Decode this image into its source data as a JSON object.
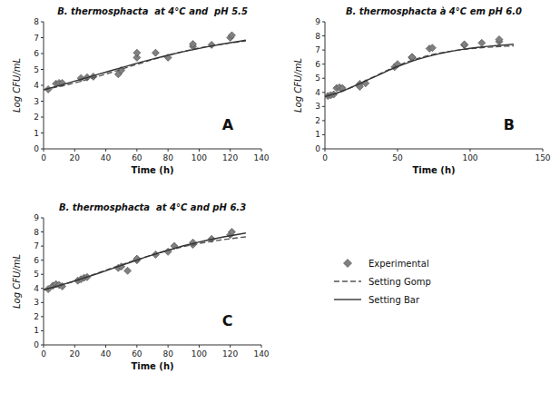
{
  "chart_data": [
    {
      "type": "line",
      "title": "B. thermosphacta  at 4°C and  pH 5.5",
      "xlabel": "Time (h)",
      "ylabel": "Log CFU/mL",
      "xlim": [
        0,
        140
      ],
      "ylim": [
        0,
        8
      ],
      "xticks": [
        0,
        20,
        40,
        60,
        80,
        100,
        120,
        140
      ],
      "yticks": [
        0,
        1,
        2,
        3,
        4,
        5,
        6,
        7,
        8
      ],
      "annotations": [
        "A"
      ],
      "series": [
        {
          "name": "Experimental",
          "type": "scatter",
          "marker": "diamond",
          "color": "#808080",
          "x": [
            3,
            8,
            10,
            12,
            24,
            28,
            32,
            48,
            50,
            60,
            60,
            72,
            80,
            96,
            96,
            108,
            120,
            121
          ],
          "values": [
            3.75,
            4.1,
            4.15,
            4.15,
            4.45,
            4.5,
            4.55,
            4.7,
            4.95,
            5.75,
            6.05,
            6.05,
            5.75,
            6.45,
            6.6,
            6.55,
            7.0,
            7.15
          ]
        },
        {
          "name": "Setting Gomp",
          "type": "line",
          "line_style": "dashed",
          "color": "#555555",
          "x": [
            0,
            5,
            10,
            15,
            20,
            25,
            30,
            35,
            40,
            45,
            50,
            55,
            60,
            65,
            70,
            75,
            80,
            85,
            90,
            95,
            100,
            105,
            110,
            115,
            120,
            125,
            130
          ],
          "values": [
            3.72,
            3.82,
            3.92,
            4.03,
            4.15,
            4.28,
            4.42,
            4.56,
            4.71,
            4.86,
            5.01,
            5.17,
            5.32,
            5.47,
            5.62,
            5.76,
            5.89,
            6.02,
            6.14,
            6.25,
            6.35,
            6.44,
            6.52,
            6.6,
            6.67,
            6.73,
            6.79
          ]
        },
        {
          "name": "Setting Bar",
          "type": "line",
          "line_style": "solid",
          "color": "#333333",
          "x": [
            0,
            5,
            10,
            15,
            20,
            25,
            30,
            35,
            40,
            45,
            50,
            55,
            60,
            65,
            70,
            75,
            80,
            85,
            90,
            95,
            100,
            105,
            110,
            115,
            120,
            125,
            130
          ],
          "values": [
            3.72,
            3.85,
            3.98,
            4.12,
            4.26,
            4.4,
            4.54,
            4.69,
            4.83,
            4.97,
            5.11,
            5.25,
            5.39,
            5.52,
            5.65,
            5.77,
            5.89,
            6.01,
            6.12,
            6.22,
            6.32,
            6.42,
            6.51,
            6.6,
            6.68,
            6.76,
            6.84
          ]
        }
      ]
    },
    {
      "type": "line",
      "title": "B. thermosphacta à 4°C em pH 6.0",
      "xlabel": "Time (h)",
      "ylabel": "Log CFU/mL",
      "xlim": [
        0,
        150
      ],
      "ylim": [
        0,
        9
      ],
      "xticks": [
        0,
        50,
        100,
        150
      ],
      "yticks": [
        0,
        1,
        2,
        3,
        4,
        5,
        6,
        7,
        8,
        9
      ],
      "annotations": [
        "B"
      ],
      "series": [
        {
          "name": "Experimental",
          "type": "scatter",
          "marker": "diamond",
          "color": "#808080",
          "x": [
            2,
            4,
            6,
            8,
            10,
            12,
            24,
            24,
            28,
            48,
            50,
            60,
            60,
            60,
            72,
            74,
            96,
            96,
            108,
            120,
            120
          ],
          "values": [
            3.75,
            3.8,
            3.85,
            4.3,
            4.35,
            4.3,
            4.6,
            4.4,
            4.65,
            5.8,
            6.0,
            6.45,
            6.5,
            6.5,
            7.1,
            7.15,
            7.35,
            7.4,
            7.5,
            7.6,
            7.75
          ]
        },
        {
          "name": "Setting Gomp",
          "type": "line",
          "line_style": "dashed",
          "color": "#555555",
          "x": [
            0,
            5,
            10,
            15,
            20,
            25,
            30,
            35,
            40,
            45,
            50,
            55,
            60,
            65,
            70,
            75,
            80,
            85,
            90,
            95,
            100,
            105,
            110,
            115,
            120,
            125,
            130
          ],
          "values": [
            3.7,
            3.83,
            4.0,
            4.2,
            4.43,
            4.67,
            4.92,
            5.17,
            5.42,
            5.66,
            5.88,
            6.09,
            6.27,
            6.44,
            6.58,
            6.7,
            6.8,
            6.89,
            6.97,
            7.04,
            7.09,
            7.14,
            7.18,
            7.21,
            7.24,
            7.27,
            7.29
          ]
        },
        {
          "name": "Setting Bar",
          "type": "line",
          "line_style": "solid",
          "color": "#333333",
          "x": [
            0,
            5,
            10,
            15,
            20,
            25,
            30,
            35,
            40,
            45,
            50,
            55,
            60,
            65,
            70,
            75,
            80,
            85,
            90,
            95,
            100,
            105,
            110,
            115,
            120,
            125,
            130
          ],
          "values": [
            3.7,
            3.85,
            4.02,
            4.22,
            4.44,
            4.67,
            4.91,
            5.14,
            5.38,
            5.61,
            5.82,
            6.02,
            6.21,
            6.37,
            6.52,
            6.65,
            6.77,
            6.87,
            6.97,
            7.05,
            7.12,
            7.18,
            7.24,
            7.29,
            7.33,
            7.37,
            7.41
          ]
        }
      ]
    },
    {
      "type": "line",
      "title": "B. thermosphacta  at 4°C and pH 6.3",
      "xlabel": "Time (h)",
      "ylabel": "Log CFU/mL",
      "xlim": [
        0,
        140
      ],
      "ylim": [
        0,
        9
      ],
      "xticks": [
        0,
        20,
        40,
        60,
        80,
        100,
        120,
        140
      ],
      "yticks": [
        0,
        1,
        2,
        3,
        4,
        5,
        6,
        7,
        8,
        9
      ],
      "annotations": [
        "C"
      ],
      "series": [
        {
          "name": "Experimental",
          "type": "scatter",
          "marker": "diamond",
          "color": "#808080",
          "x": [
            3,
            6,
            8,
            10,
            12,
            22,
            24,
            26,
            28,
            48,
            50,
            54,
            60,
            60,
            72,
            80,
            84,
            96,
            96,
            108,
            120,
            121
          ],
          "values": [
            3.95,
            4.2,
            4.3,
            4.25,
            4.15,
            4.55,
            4.65,
            4.75,
            4.8,
            5.45,
            5.55,
            5.25,
            6.0,
            6.1,
            6.4,
            6.6,
            7.0,
            7.1,
            7.25,
            7.5,
            7.8,
            8.0
          ]
        },
        {
          "name": "Setting Gomp",
          "type": "line",
          "line_style": "dashed",
          "color": "#555555",
          "x": [
            0,
            5,
            10,
            15,
            20,
            25,
            30,
            35,
            40,
            45,
            50,
            55,
            60,
            65,
            70,
            75,
            80,
            85,
            90,
            95,
            100,
            105,
            110,
            115,
            120,
            125,
            130
          ],
          "values": [
            3.9,
            4.02,
            4.18,
            4.35,
            4.52,
            4.71,
            4.9,
            5.09,
            5.29,
            5.48,
            5.67,
            5.86,
            6.04,
            6.21,
            6.38,
            6.54,
            6.69,
            6.83,
            6.96,
            7.08,
            7.19,
            7.28,
            7.37,
            7.45,
            7.52,
            7.59,
            7.65
          ]
        },
        {
          "name": "Setting Bar",
          "type": "line",
          "line_style": "solid",
          "color": "#333333",
          "x": [
            0,
            5,
            10,
            15,
            20,
            25,
            30,
            35,
            40,
            45,
            50,
            55,
            60,
            65,
            70,
            75,
            80,
            85,
            90,
            95,
            100,
            105,
            110,
            115,
            120,
            125,
            130
          ],
          "values": [
            3.9,
            4.05,
            4.2,
            4.36,
            4.53,
            4.7,
            4.88,
            5.06,
            5.25,
            5.44,
            5.63,
            5.82,
            6.0,
            6.19,
            6.37,
            6.54,
            6.71,
            6.87,
            7.02,
            7.16,
            7.29,
            7.41,
            7.52,
            7.63,
            7.73,
            7.83,
            7.92
          ]
        }
      ]
    }
  ]
}
